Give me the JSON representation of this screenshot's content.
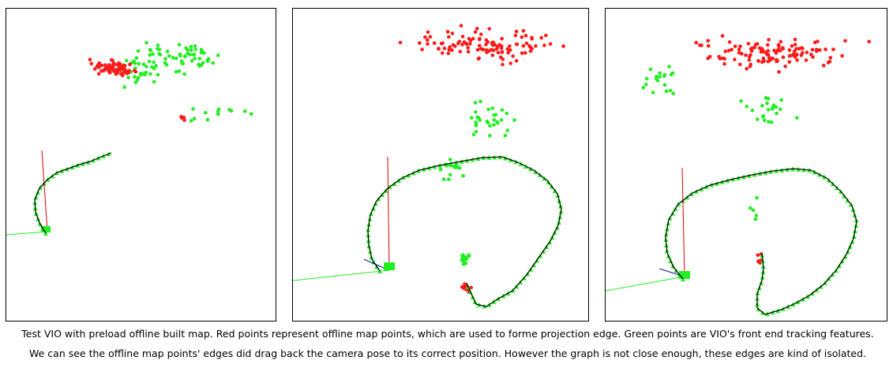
{
  "figure": {
    "legend_colors": {
      "offline_map_points": "#ff1a1a",
      "vio_tracking_features": "#22ee22",
      "trajectory": "#000000",
      "camera_axis_x": "#22ee22",
      "camera_axis_y": "#e00000",
      "camera_axis_z": "#1a1a99"
    },
    "panels": [
      {
        "name": "panel-1"
      },
      {
        "name": "panel-2"
      },
      {
        "name": "panel-3"
      }
    ]
  },
  "caption": {
    "line1": "Test VIO with preload offline built map. Red points represent offline map points, which are used to forme projection edge. Green points are VIO's front end tracking features.",
    "line2": "We can see the offline map points' edges did drag back the camera pose to its correct position. However the graph is not close enough, these edges are kind of isolated."
  }
}
